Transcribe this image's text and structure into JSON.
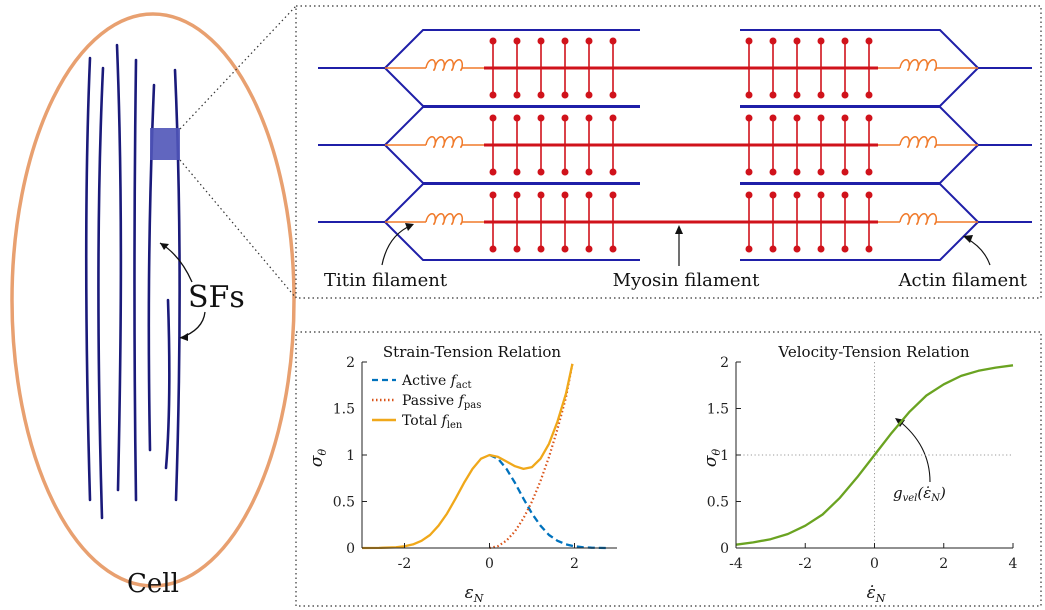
{
  "cell": {
    "label": "Cell",
    "sf_label": "SFs",
    "colors": {
      "membrane": "#e8a070",
      "fiber": "#1a1a7a",
      "highlight": "#5055b8"
    }
  },
  "sarcomere": {
    "labels": {
      "titin": "Titin filament",
      "myosin": "Myosin filament",
      "actin": "Actin filament"
    },
    "colors": {
      "actin": "#1f1fa8",
      "myosin": "#d0121b",
      "titin": "#f07a2a"
    }
  },
  "charts": {
    "left": {
      "title": "Strain-Tension Relation",
      "ylabel": "σ",
      "ylabel_sub": "θ",
      "xlabel": "ε",
      "xlabel_sub": "N",
      "x_ticks": [
        "-2",
        "0",
        "2"
      ],
      "y_ticks": [
        "0",
        "0.5",
        "1",
        "1.5",
        "2"
      ],
      "legend": [
        {
          "label": "Active ",
          "sym": "f",
          "sub": "act"
        },
        {
          "label": "Passive ",
          "sym": "f",
          "sub": "pas"
        },
        {
          "label": "Total ",
          "sym": "f",
          "sub": "len"
        }
      ]
    },
    "right": {
      "title": "Velocity-Tension Relation",
      "ylabel": "σ",
      "ylabel_sub": "θ",
      "xlabel": "ε̇",
      "xlabel_sub": "N",
      "x_ticks": [
        "-4",
        "-2",
        "0",
        "2",
        "4"
      ],
      "y_ticks": [
        "0",
        "0.5",
        "1",
        "1.5",
        "2"
      ],
      "annotation": {
        "sym": "g",
        "sub": "vel",
        "arg_open": "(",
        "arg": "ε̇",
        "arg_sub": "N",
        "arg_close": ")"
      }
    }
  },
  "chart_data": [
    {
      "type": "line",
      "title": "Strain-Tension Relation",
      "xlabel": "ε_N",
      "ylabel": "σ_θ",
      "xlim": [
        -3,
        3
      ],
      "ylim": [
        0,
        2
      ],
      "legend_position": "top-left",
      "grid": false,
      "series": [
        {
          "name": "Active f_act",
          "style": "dashed",
          "color": "#0072bd",
          "x": [
            0,
            0.2,
            0.4,
            0.6,
            0.8,
            1.0,
            1.2,
            1.4,
            1.6,
            1.8,
            2.0,
            2.2,
            2.4,
            2.6,
            2.8
          ],
          "y": [
            1.0,
            0.96,
            0.85,
            0.7,
            0.53,
            0.37,
            0.24,
            0.14,
            0.077,
            0.039,
            0.018,
            0.008,
            0.003,
            0.001,
            0.0
          ]
        },
        {
          "name": "Passive f_pas",
          "style": "dotted",
          "color": "#d95319",
          "x": [
            0,
            0.2,
            0.4,
            0.6,
            0.8,
            1.0,
            1.2,
            1.4,
            1.6,
            1.8,
            1.95
          ],
          "y": [
            0.0,
            0.02,
            0.08,
            0.18,
            0.32,
            0.5,
            0.72,
            0.98,
            1.28,
            1.62,
            1.98
          ]
        },
        {
          "name": "Total f_len",
          "style": "solid",
          "color": "#f0a81a",
          "x": [
            -3,
            -2.6,
            -2.2,
            -2.0,
            -1.8,
            -1.6,
            -1.4,
            -1.2,
            -1.0,
            -0.8,
            -0.6,
            -0.4,
            -0.2,
            0,
            0.2,
            0.4,
            0.6,
            0.8,
            1.0,
            1.2,
            1.4,
            1.6,
            1.8,
            1.95
          ],
          "y": [
            0.0,
            0.001,
            0.008,
            0.018,
            0.039,
            0.077,
            0.14,
            0.24,
            0.37,
            0.53,
            0.7,
            0.85,
            0.96,
            1.0,
            0.98,
            0.93,
            0.88,
            0.85,
            0.87,
            0.96,
            1.12,
            1.36,
            1.66,
            1.98
          ]
        }
      ]
    },
    {
      "type": "line",
      "title": "Velocity-Tension Relation",
      "xlabel": "ε̇_N",
      "ylabel": "σ_θ",
      "xlim": [
        -4,
        4
      ],
      "ylim": [
        0,
        2
      ],
      "grid": false,
      "reference_lines": {
        "x": 0,
        "y": 1
      },
      "series": [
        {
          "name": "g_vel(ε̇_N)",
          "style": "solid",
          "color": "#6aa321",
          "x": [
            -4,
            -3.5,
            -3,
            -2.5,
            -2,
            -1.5,
            -1,
            -0.5,
            0,
            0.5,
            1,
            1.5,
            2,
            2.5,
            3,
            3.5,
            4
          ],
          "y": [
            0.036,
            0.06,
            0.095,
            0.15,
            0.24,
            0.36,
            0.54,
            0.76,
            1.0,
            1.24,
            1.46,
            1.64,
            1.76,
            1.85,
            1.905,
            1.94,
            1.964
          ]
        }
      ]
    }
  ]
}
